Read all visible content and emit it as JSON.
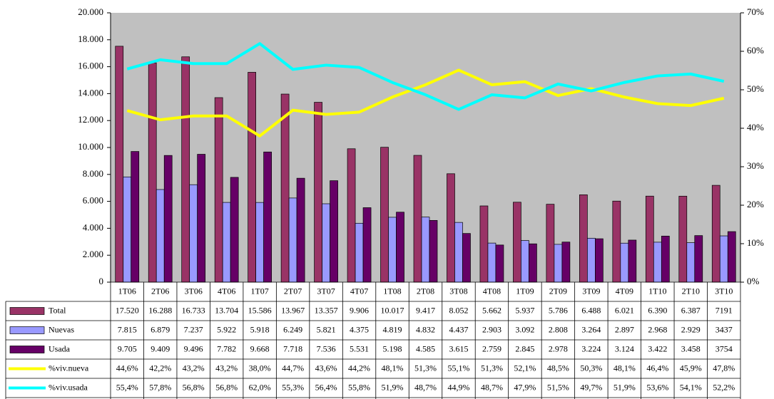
{
  "chart_data": {
    "type": "bar-line-table",
    "categories": [
      "1T06",
      "2T06",
      "3T06",
      "4T06",
      "1T07",
      "2T07",
      "3T07",
      "4T07",
      "1T08",
      "2T08",
      "3T08",
      "4T08",
      "1T09",
      "2T09",
      "3T09",
      "4T09",
      "1T10",
      "2T10",
      "3T10"
    ],
    "series": [
      {
        "name": "Total",
        "color": "#993366",
        "type": "bar",
        "values": [
          17520,
          16288,
          16733,
          13704,
          15586,
          13967,
          13357,
          9906,
          10017,
          9417,
          8052,
          5662,
          5937,
          5786,
          6488,
          6021,
          6390,
          6387,
          7191
        ],
        "value_labels": [
          "17.520",
          "16.288",
          "16.733",
          "13.704",
          "15.586",
          "13.967",
          "13.357",
          "9.906",
          "10.017",
          "9.417",
          "8.052",
          "5.662",
          "5.937",
          "5.786",
          "6.488",
          "6.021",
          "6.390",
          "6.387",
          "7191"
        ]
      },
      {
        "name": "Nuevas",
        "color": "#9999ff",
        "type": "bar",
        "values": [
          7815,
          6879,
          7237,
          5922,
          5918,
          6249,
          5821,
          4375,
          4819,
          4832,
          4437,
          2903,
          3092,
          2808,
          3264,
          2897,
          2968,
          2929,
          3437
        ],
        "value_labels": [
          "7.815",
          "6.879",
          "7.237",
          "5.922",
          "5.918",
          "6.249",
          "5.821",
          "4.375",
          "4.819",
          "4.832",
          "4.437",
          "2.903",
          "3.092",
          "2.808",
          "3.264",
          "2.897",
          "2.968",
          "2.929",
          "3437"
        ]
      },
      {
        "name": "Usada",
        "color": "#660066",
        "type": "bar",
        "values": [
          9705,
          9409,
          9496,
          7782,
          9668,
          7718,
          7536,
          5531,
          5198,
          4585,
          3615,
          2759,
          2845,
          2978,
          3224,
          3124,
          3422,
          3458,
          3754
        ],
        "value_labels": [
          "9.705",
          "9.409",
          "9.496",
          "7.782",
          "9.668",
          "7.718",
          "7.536",
          "5.531",
          "5.198",
          "4.585",
          "3.615",
          "2.759",
          "2.845",
          "2.978",
          "3.224",
          "3.124",
          "3.422",
          "3.458",
          "3754"
        ]
      },
      {
        "name": "%viv.nueva",
        "color": "#ffff00",
        "type": "line",
        "axis": "y2",
        "values": [
          44.6,
          42.2,
          43.2,
          43.2,
          38.0,
          44.7,
          43.6,
          44.2,
          48.1,
          51.3,
          55.1,
          51.3,
          52.1,
          48.5,
          50.3,
          48.1,
          46.4,
          45.9,
          47.8
        ],
        "value_labels": [
          "44,6%",
          "42,2%",
          "43,2%",
          "43,2%",
          "38,0%",
          "44,7%",
          "43,6%",
          "44,2%",
          "48,1%",
          "51,3%",
          "55,1%",
          "51,3%",
          "52,1%",
          "48,5%",
          "50,3%",
          "48,1%",
          "46,4%",
          "45,9%",
          "47,8%"
        ]
      },
      {
        "name": "%viv.usada",
        "color": "#00ffff",
        "type": "line",
        "axis": "y2",
        "values": [
          55.4,
          57.8,
          56.8,
          56.8,
          62.0,
          55.3,
          56.4,
          55.8,
          51.9,
          48.7,
          44.9,
          48.7,
          47.9,
          51.5,
          49.7,
          51.9,
          53.6,
          54.1,
          52.2
        ],
        "value_labels": [
          "55,4%",
          "57,8%",
          "56,8%",
          "56,8%",
          "62,0%",
          "55,3%",
          "56,4%",
          "55,8%",
          "51,9%",
          "48,7%",
          "44,9%",
          "48,7%",
          "47,9%",
          "51,5%",
          "49,7%",
          "51,9%",
          "53,6%",
          "54,1%",
          "52,2%"
        ]
      }
    ],
    "ylim": [
      0,
      20000
    ],
    "yticks": [
      0,
      {
        "value": 2000,
        "label": "2.000"
      },
      {
        "value": 4000,
        "label": "4.000"
      },
      {
        "value": 6000,
        "label": "6.000"
      },
      {
        "value": 8000,
        "label": "8.000"
      },
      {
        "value": 10000,
        "label": "10.000"
      },
      {
        "value": 12000,
        "label": "12.000"
      },
      {
        "value": 14000,
        "label": "14.000"
      },
      {
        "value": 16000,
        "label": "16.000"
      },
      {
        "value": 18000,
        "label": "18.000"
      },
      {
        "value": 20000,
        "label": "20.000"
      }
    ],
    "y2lim": [
      0,
      70
    ],
    "y2ticks": [
      {
        "value": 0,
        "label": "0%"
      },
      {
        "value": 10,
        "label": "10%"
      },
      {
        "value": 20,
        "label": "20%"
      },
      {
        "value": 30,
        "label": "30%"
      },
      {
        "value": 40,
        "label": "40%"
      },
      {
        "value": 50,
        "label": "50%"
      },
      {
        "value": 60,
        "label": "60%"
      },
      {
        "value": 70,
        "label": "70%"
      }
    ],
    "plot_background": "#c0c0c0"
  }
}
